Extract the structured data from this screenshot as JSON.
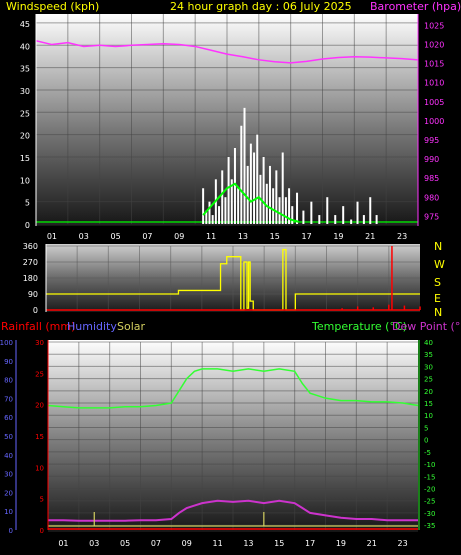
{
  "header": {
    "left_label": "Windspeed (kph)",
    "title": "24 hour graph day : 06 July 2025",
    "right_label": "Barometer (hpa)"
  },
  "compass": {
    "labels": [
      "N",
      "W",
      "S",
      "E",
      "N"
    ]
  },
  "bottom_header": {
    "rainfall": "Rainfall (mm)",
    "humidity": "Humidity",
    "solar": "Solar",
    "temperature": "Temperature (°C)",
    "dewpoint": "Dew Point (°C)"
  },
  "colors": {
    "wind": "#ffffff",
    "gust_avg": "#00ff00",
    "barometer": "#ff33ff",
    "direction": "#ffff00",
    "rain": "#ff0000",
    "humidity": "#6666ff",
    "solar": "#d4d060",
    "temperature": "#33ff33",
    "dewpoint": "#cc33cc",
    "title": "#ffff00"
  },
  "chart_data": [
    {
      "type": "line",
      "name": "wind-barometer",
      "x_ticks": [
        "01",
        "03",
        "05",
        "07",
        "09",
        "11",
        "13",
        "15",
        "17",
        "19",
        "21",
        "23"
      ],
      "y_left_ticks": [
        "0",
        "5",
        "10",
        "15",
        "20",
        "25",
        "30",
        "35",
        "40",
        "45"
      ],
      "y_left_range": [
        0,
        47
      ],
      "y_right_ticks": [
        "975",
        "980",
        "985",
        "990",
        "995",
        "1000",
        "1005",
        "1010",
        "1015",
        "1020",
        "1025"
      ],
      "y_right_range": [
        973,
        1028
      ],
      "series": [
        {
          "role": "barometer",
          "x": [
            0,
            1,
            2,
            3,
            4,
            5,
            6,
            7,
            8,
            9,
            10,
            11,
            12,
            13,
            14,
            15,
            16,
            17,
            18,
            19,
            20,
            21,
            22,
            23,
            24
          ],
          "values": [
            1021,
            1020,
            1020.5,
            1019.5,
            1019.8,
            1019.5,
            1019.8,
            1020,
            1020.2,
            1020,
            1019.5,
            1018.5,
            1017.5,
            1016.8,
            1016,
            1015.5,
            1015.2,
            1015.6,
            1016.2,
            1016.6,
            1016.8,
            1016.7,
            1016.5,
            1016.3,
            1016
          ]
        },
        {
          "role": "windspeed",
          "x": [
            10.5,
            10.7,
            10.9,
            11.1,
            11.3,
            11.5,
            11.7,
            11.9,
            12.1,
            12.3,
            12.5,
            12.7,
            12.9,
            13.1,
            13.3,
            13.5,
            13.7,
            13.9,
            14.1,
            14.3,
            14.5,
            14.7,
            14.9,
            15.1,
            15.3,
            15.5,
            15.7,
            15.9,
            16.1,
            16.4,
            16.8,
            17.3,
            17.8,
            18.3,
            18.8,
            19.3,
            19.8,
            20.2,
            20.6,
            21.0,
            21.4
          ],
          "values": [
            8,
            3,
            5,
            2,
            10,
            4,
            12,
            6,
            15,
            10,
            17,
            8,
            22,
            26,
            13,
            18,
            16,
            20,
            11,
            15,
            9,
            13,
            8,
            12,
            6,
            16,
            6,
            8,
            4,
            7,
            3,
            5,
            2,
            6,
            2,
            4,
            1,
            5,
            2,
            6,
            2
          ]
        },
        {
          "role": "wind-average",
          "x": [
            10.5,
            11,
            11.5,
            12,
            12.5,
            13,
            13.5,
            14,
            14.5,
            15,
            15.5,
            16,
            16.5
          ],
          "values": [
            2,
            4,
            6,
            8,
            9,
            7,
            5,
            6,
            4,
            3,
            2,
            1,
            0.5
          ]
        }
      ]
    },
    {
      "type": "line",
      "name": "wind-direction",
      "x_ticks": [
        "01",
        "03",
        "05",
        "07",
        "09",
        "11",
        "13",
        "15",
        "17",
        "19",
        "21",
        "23"
      ],
      "y_ticks": [
        "0",
        "90",
        "180",
        "270",
        "360"
      ],
      "y_range": [
        0,
        360
      ],
      "series": [
        {
          "role": "direction",
          "x": [
            0,
            8.5,
            8.5,
            11.2,
            11.2,
            11.6,
            11.6,
            12.5,
            12.5,
            12.7,
            12.7,
            12.9,
            12.9,
            13,
            13,
            13.1,
            13.1,
            13.3,
            13.3,
            15.2,
            15.2,
            15.4,
            15.4,
            16,
            16,
            24
          ],
          "values": [
            90,
            90,
            110,
            110,
            260,
            260,
            300,
            300,
            0,
            0,
            270,
            270,
            10,
            10,
            270,
            270,
            50,
            50,
            0,
            0,
            340,
            340,
            0,
            0,
            90,
            90
          ]
        },
        {
          "role": "rain-ticks",
          "x": [
            19,
            20,
            21,
            22,
            22.2,
            23,
            24
          ],
          "values": [
            10,
            20,
            15,
            30,
            360,
            25,
            20
          ]
        }
      ]
    },
    {
      "type": "line",
      "name": "temp-humidity",
      "x_ticks": [
        "01",
        "03",
        "05",
        "07",
        "09",
        "11",
        "13",
        "15",
        "17",
        "19",
        "21",
        "23"
      ],
      "y_humidity_ticks": [
        "0",
        "10",
        "20",
        "30",
        "40",
        "50",
        "60",
        "70",
        "80",
        "90",
        "100"
      ],
      "y_rain_ticks": [
        "0",
        "5",
        "10",
        "15",
        "20",
        "25",
        "30"
      ],
      "y_temp_ticks": [
        "40",
        "35",
        "30",
        "25",
        "20",
        "15",
        "10",
        "5",
        "0",
        "-5",
        "-10",
        "-15",
        "-20",
        "-25",
        "-30",
        "-35"
      ],
      "y_temp_range": [
        -37,
        40
      ],
      "series": [
        {
          "role": "temperature",
          "x": [
            0,
            1,
            2,
            3,
            4,
            5,
            6,
            7,
            8,
            8.5,
            9,
            9.5,
            10,
            11,
            12,
            13,
            14,
            15,
            16,
            16.5,
            17,
            18,
            19,
            20,
            21,
            22,
            23,
            24
          ],
          "values": [
            14,
            13.5,
            13,
            13,
            13,
            13.5,
            13.5,
            14,
            15,
            20,
            25,
            28,
            29,
            29,
            28,
            29,
            28,
            29,
            28,
            23,
            19,
            17,
            16,
            16,
            15.5,
            15.5,
            15,
            14
          ]
        },
        {
          "role": "dewpoint",
          "x": [
            0,
            1,
            2,
            3,
            4,
            5,
            6,
            7,
            8,
            8.5,
            9,
            9.5,
            10,
            11,
            12,
            13,
            14,
            15,
            16,
            16.5,
            17,
            18,
            19,
            20,
            21,
            22,
            23,
            24
          ],
          "values": [
            -33,
            -33,
            -33.2,
            -33.2,
            -33.2,
            -33.2,
            -33,
            -33,
            -32.5,
            -30,
            -28,
            -27,
            -26,
            -25,
            -25.5,
            -25,
            -26,
            -25,
            -26,
            -28,
            -30,
            -31,
            -32,
            -32.5,
            -32.5,
            -33,
            -33,
            -33
          ]
        },
        {
          "role": "solar",
          "x": [
            3,
            14
          ],
          "values": [
            3,
            3
          ]
        }
      ]
    }
  ]
}
